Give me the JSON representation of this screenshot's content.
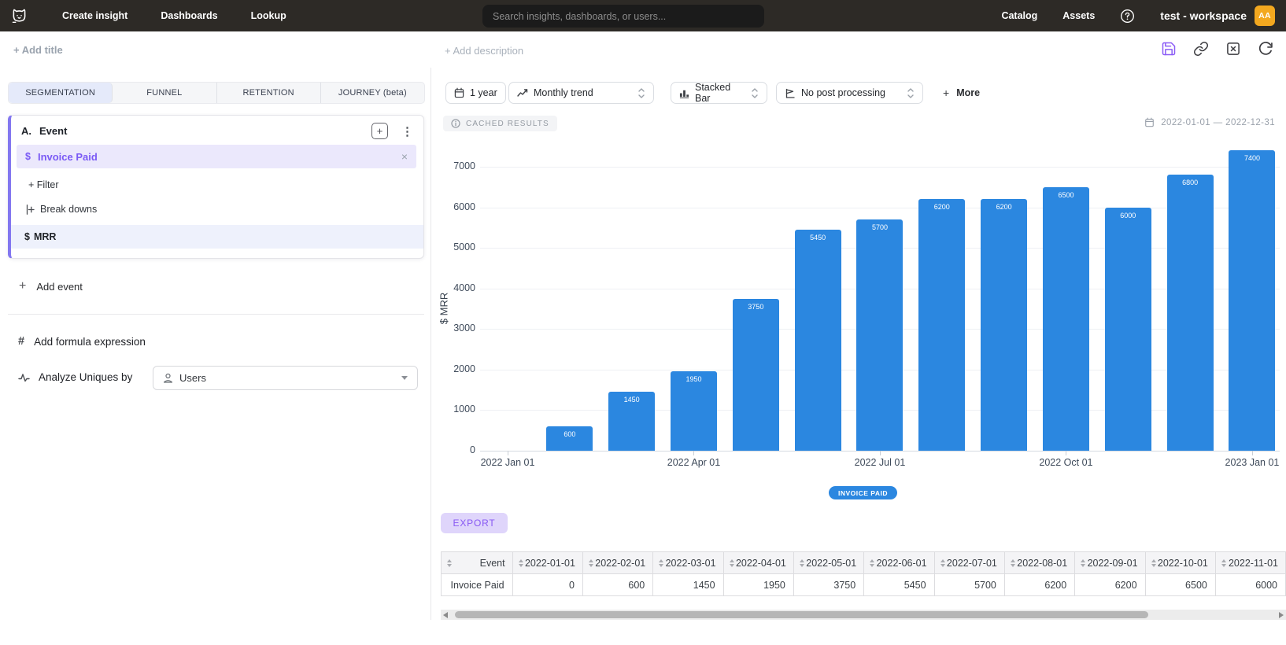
{
  "icons": {
    "plus": "+",
    "kebab": "⋮",
    "close": "×",
    "dollar": "$",
    "hash": "#"
  },
  "colors": {
    "accent_purple": "#8b5cf6",
    "bar_blue": "#2b87e0",
    "avatar_orange": "#f3a81f",
    "active_tab_bg": "#e5eafa"
  },
  "topnav": {
    "items": [
      {
        "label": "Create insight"
      },
      {
        "label": "Dashboards"
      },
      {
        "label": "Lookup"
      }
    ],
    "search_placeholder": "Search insights, dashboards, or users...",
    "right_items": [
      {
        "label": "Catalog"
      },
      {
        "label": "Assets"
      }
    ],
    "workspace": "test - workspace",
    "avatar_initials": "AA"
  },
  "header": {
    "add_title": "+ Add title",
    "add_description": "+ Add description"
  },
  "left_panel": {
    "tabs": [
      {
        "label": "SEGMENTATION",
        "active": true
      },
      {
        "label": "FUNNEL",
        "active": false
      },
      {
        "label": "RETENTION",
        "active": false
      },
      {
        "label": "JOURNEY (beta)",
        "active": false
      }
    ],
    "event_card": {
      "prefix": "A.",
      "title": "Event",
      "event_name": "Invoice Paid",
      "filter_label": "+ Filter",
      "breakdowns_label": "Break downs",
      "breakdown_value": "MRR"
    },
    "add_event_label": "Add event",
    "add_formula_label": "Add formula expression",
    "analyze_label": "Analyze Uniques by",
    "analyze_value": "Users"
  },
  "toolbar": {
    "date_preset": "1 year",
    "trend": "Monthly trend",
    "chart_type": "Stacked Bar",
    "post_processing": "No post processing",
    "more_label": "More"
  },
  "results": {
    "cached_badge": "CACHED RESULTS",
    "date_range": "2022-01-01 — 2022-12-31",
    "export_label": "EXPORT"
  },
  "chart_data": {
    "type": "bar",
    "title": "",
    "xlabel": "",
    "ylabel": "$ MRR",
    "series_name": "Invoice Paid",
    "x": [
      "2022-01-01",
      "2022-02-01",
      "2022-03-01",
      "2022-04-01",
      "2022-05-01",
      "2022-06-01",
      "2022-07-01",
      "2022-08-01",
      "2022-09-01",
      "2022-10-01",
      "2022-11-01",
      "2022-12-01",
      "2023-01-01"
    ],
    "values": [
      0,
      600,
      1450,
      1950,
      3750,
      5450,
      5700,
      6200,
      6200,
      6500,
      6000,
      6800,
      7400
    ],
    "x_tick_labels": [
      "2022 Jan 01",
      "2022 Apr 01",
      "2022 Jul 01",
      "2022 Oct 01",
      "2023 Jan 01"
    ],
    "x_tick_indices": [
      0,
      3,
      6,
      9,
      12
    ],
    "y_ticks": [
      0,
      1000,
      2000,
      3000,
      4000,
      5000,
      6000,
      7000
    ],
    "ylim": [
      0,
      7560
    ],
    "grid": true,
    "bar_color": "#2b87e0",
    "legend": [
      "INVOICE PAID"
    ],
    "legend_position": "bottom"
  },
  "table": {
    "columns": [
      "Event",
      "2022-01-01",
      "2022-02-01",
      "2022-03-01",
      "2022-04-01",
      "2022-05-01",
      "2022-06-01",
      "2022-07-01",
      "2022-08-01",
      "2022-09-01",
      "2022-10-01",
      "2022-11-01"
    ],
    "rows": [
      {
        "event": "Invoice Paid",
        "values": [
          "0",
          "600",
          "1450",
          "1950",
          "3750",
          "5450",
          "5700",
          "6200",
          "6200",
          "6500",
          "6000"
        ]
      }
    ]
  }
}
